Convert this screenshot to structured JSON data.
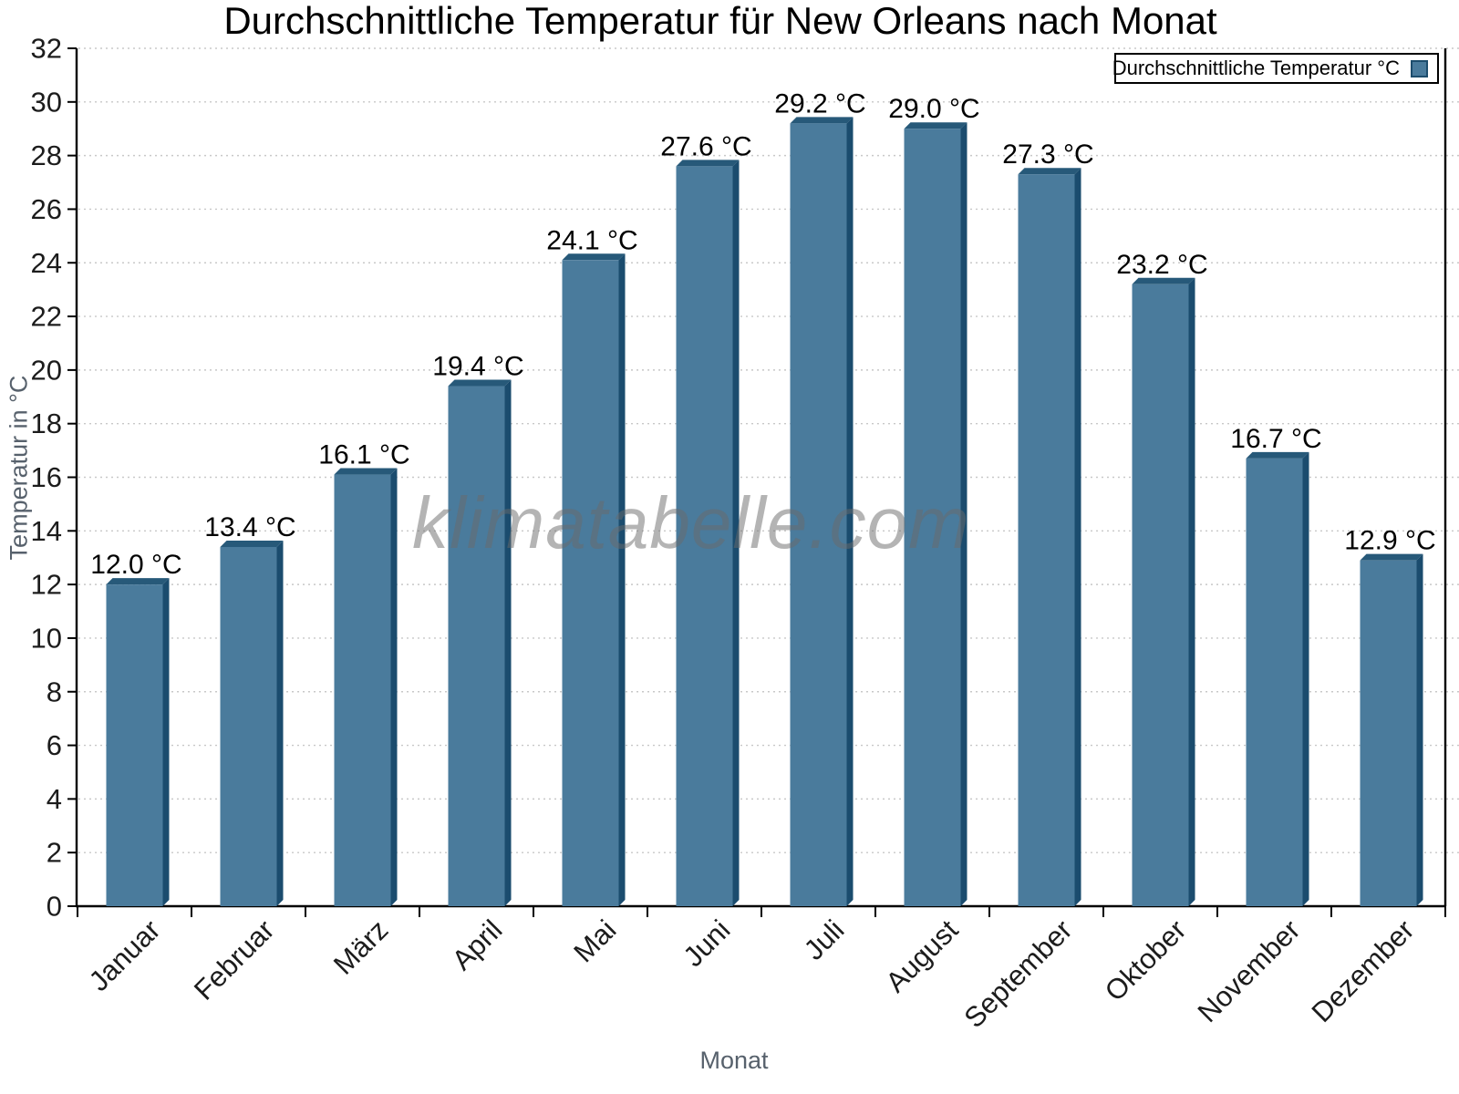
{
  "title": "Durchschnittliche Temperatur für New Orleans nach Monat",
  "watermark": "klimatabelle.com",
  "legend": {
    "label": "Durchschnittliche Temperatur °C",
    "swatch_color": "#4a7b9c",
    "swatch_border": "#1d4d6d"
  },
  "axes": {
    "x_title": "Monat",
    "y_title": "Temperatur in °C"
  },
  "chart_data": {
    "type": "bar",
    "title": "Durchschnittliche Temperatur für New Orleans nach Monat",
    "xlabel": "Monat",
    "ylabel": "Temperatur in °C",
    "categories": [
      "Januar",
      "Februar",
      "März",
      "April",
      "Mai",
      "Juni",
      "Juli",
      "August",
      "September",
      "Oktober",
      "November",
      "Dezember"
    ],
    "values": [
      12.0,
      13.4,
      16.1,
      19.4,
      24.1,
      27.6,
      29.2,
      29.0,
      27.3,
      23.2,
      16.7,
      12.9
    ],
    "value_labels": [
      "12.0 °C",
      "13.4 °C",
      "16.1 °C",
      "19.4 °C",
      "24.1 °C",
      "27.6 °C",
      "29.2 °C",
      "29.0 °C",
      "27.3 °C",
      "23.2 °C",
      "16.7 °C",
      "12.9 °C"
    ],
    "series_name": "Durchschnittliche Temperatur °C",
    "ylim": [
      0,
      32
    ],
    "ytick_step": 2,
    "grid": "horizontal-dotted",
    "legend_position": "top-right",
    "colors": {
      "bar_face": "#4a7b9c",
      "bar_side": "#1b4c6e",
      "bar_top": "#275979",
      "grid_line": "#c8c8c8",
      "axis_line": "#000000",
      "tick_label": "#1c1c1c",
      "value_label": "#000000",
      "axis_title": "#57616c",
      "watermark": "#a9a9a9"
    }
  }
}
